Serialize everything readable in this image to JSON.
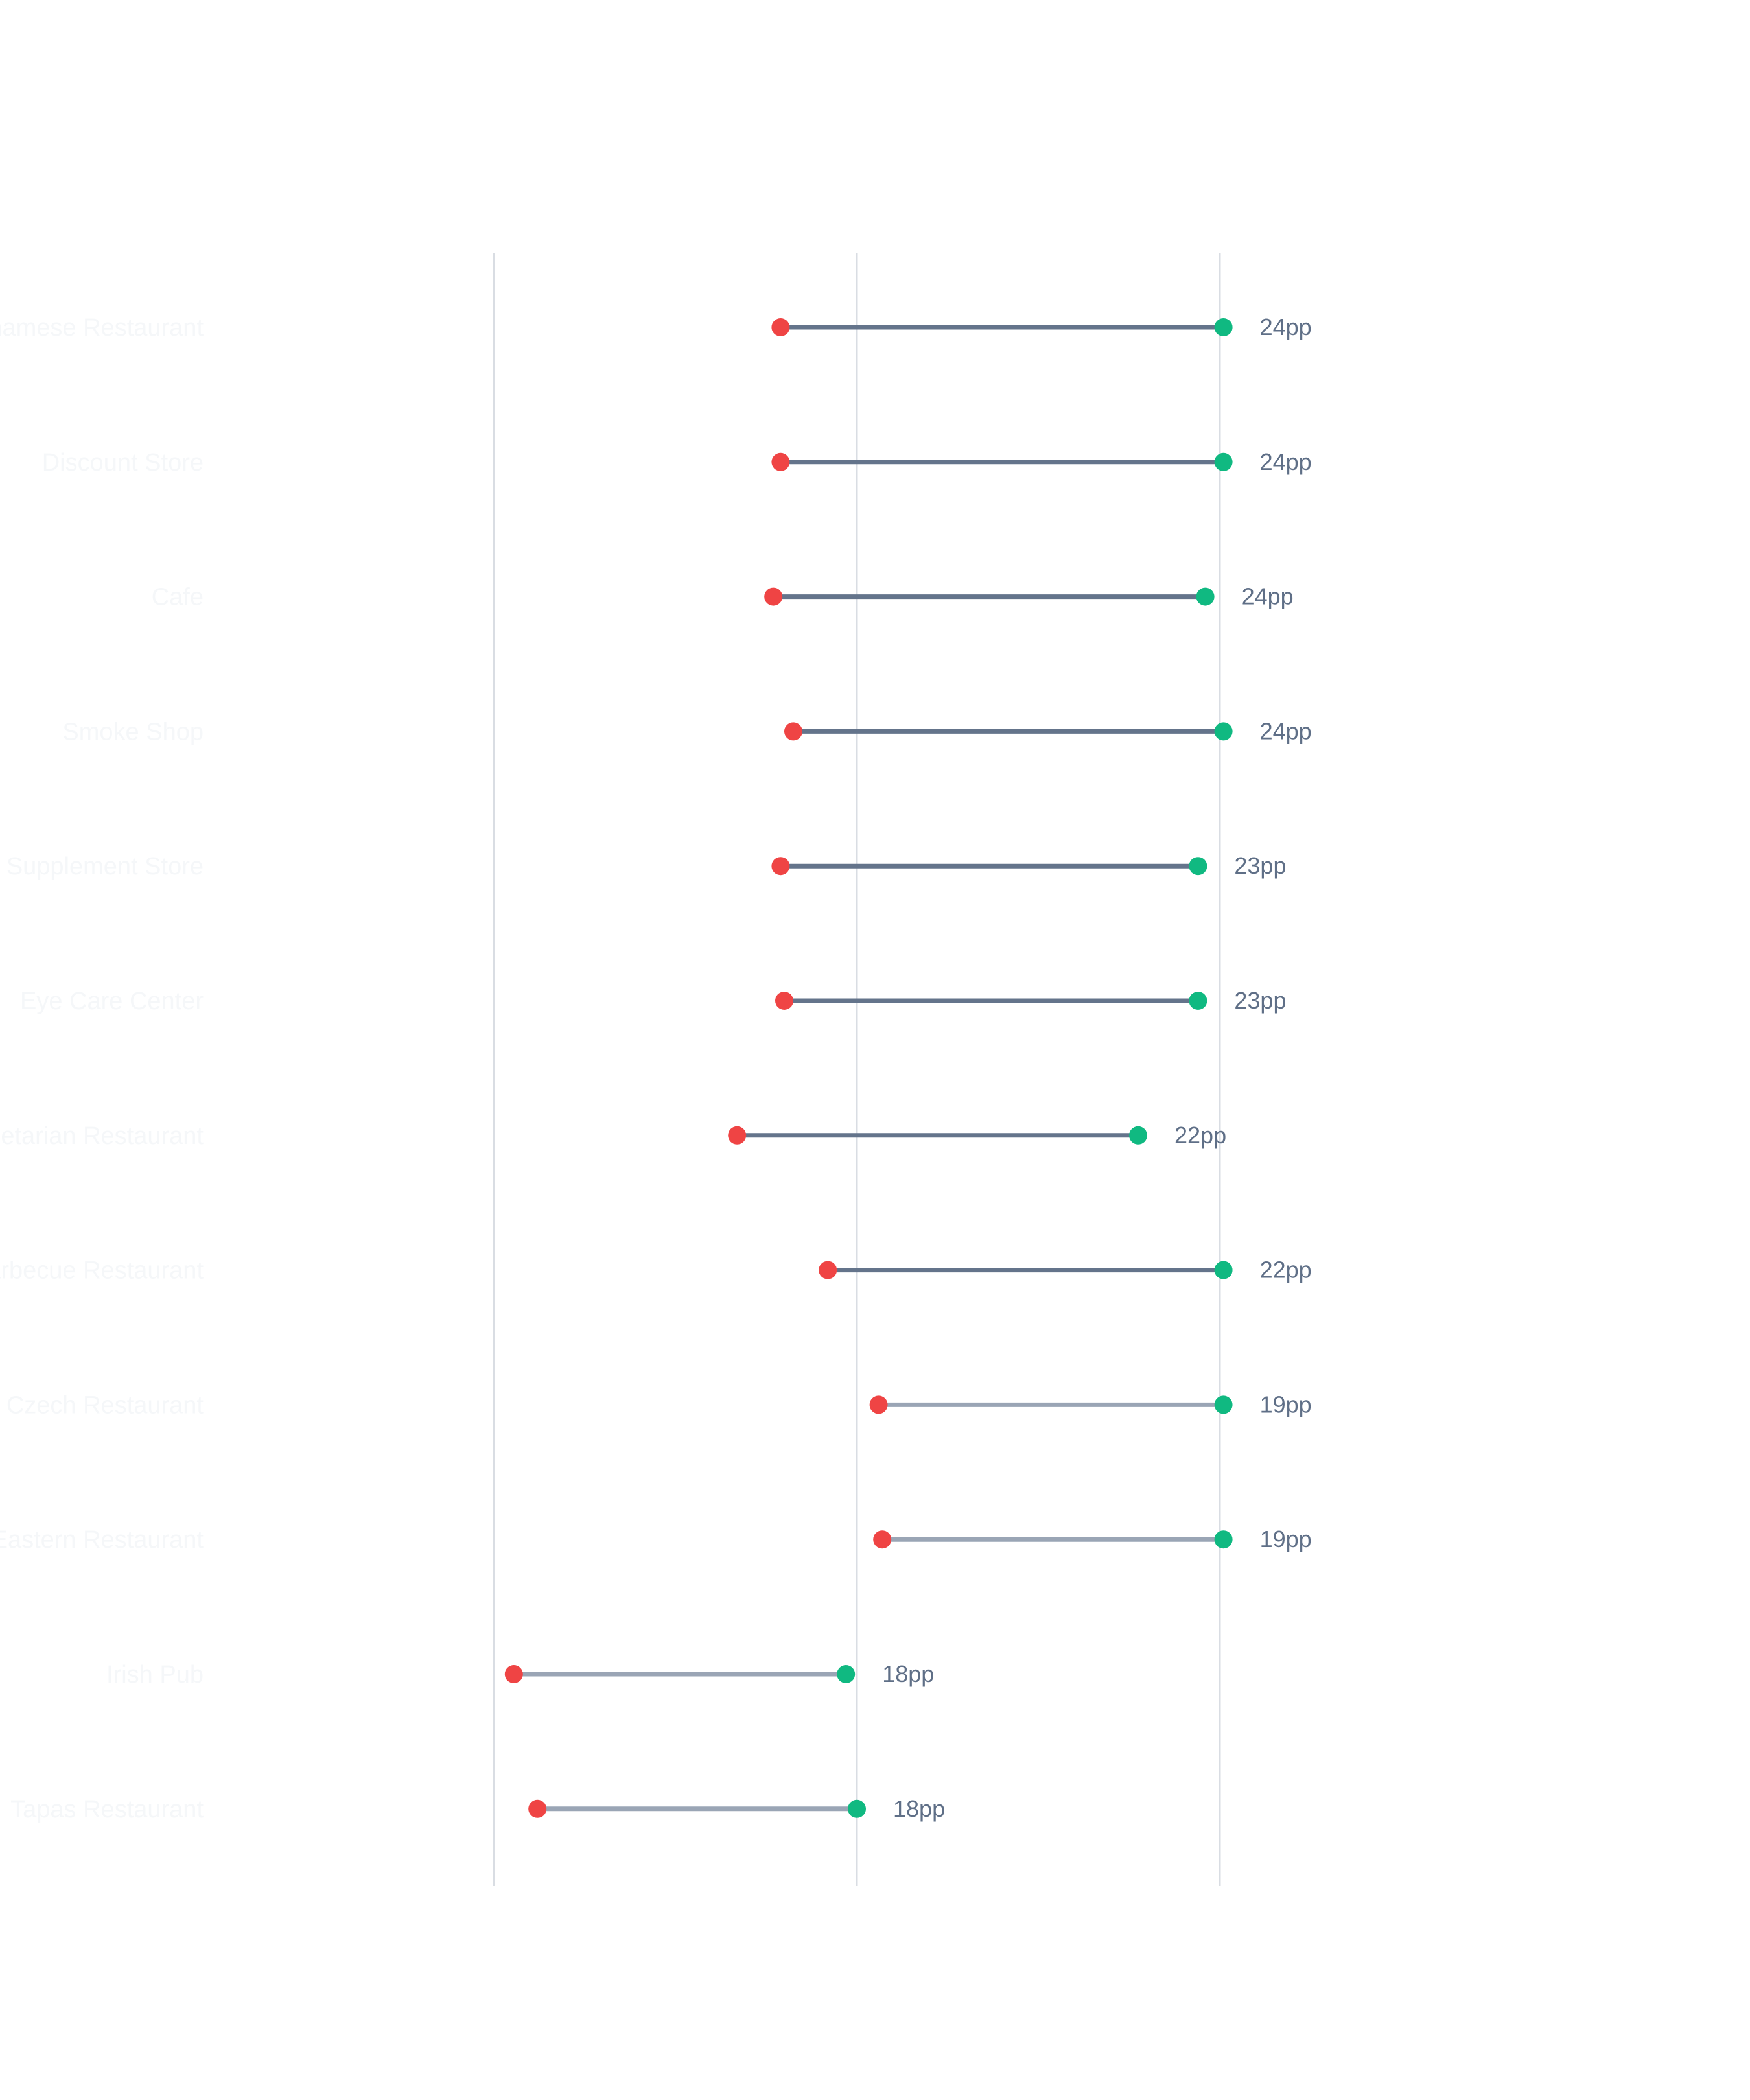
{
  "chart_data": {
    "type": "dumbbell",
    "title": "",
    "xlabel": "",
    "ylabel": "",
    "grid": "vertical",
    "colors": {
      "start_point": "#ef4444",
      "end_point": "#10b981",
      "line_major": "#64748b",
      "line_minor": "#9aa5b5",
      "gridline": "#d9dde3",
      "value_label": "#5f6f87",
      "category_label": "#f5f7f9"
    },
    "xlim": [
      0,
      0.6
    ],
    "gridlines_at": [
      0,
      0.2,
      0.4
    ],
    "rows": [
      {
        "category": "Vietnamese Restaurant",
        "start": 0.158,
        "end": 0.402,
        "label": "24pp",
        "emphasis": "major"
      },
      {
        "category": "Discount Store",
        "start": 0.158,
        "end": 0.402,
        "label": "24pp",
        "emphasis": "major"
      },
      {
        "category": "Cafe",
        "start": 0.154,
        "end": 0.392,
        "label": "24pp",
        "emphasis": "major"
      },
      {
        "category": "Smoke Shop",
        "start": 0.165,
        "end": 0.402,
        "label": "24pp",
        "emphasis": "major"
      },
      {
        "category": "Supplement Store",
        "start": 0.158,
        "end": 0.388,
        "label": "23pp",
        "emphasis": "major"
      },
      {
        "category": "Eye Care Center",
        "start": 0.16,
        "end": 0.388,
        "label": "23pp",
        "emphasis": "major"
      },
      {
        "category": "Vegetarian Restaurant",
        "start": 0.134,
        "end": 0.355,
        "label": "22pp",
        "emphasis": "major"
      },
      {
        "category": "Barbecue Restaurant",
        "start": 0.184,
        "end": 0.402,
        "label": "22pp",
        "emphasis": "major"
      },
      {
        "category": "Czech Restaurant",
        "start": 0.212,
        "end": 0.402,
        "label": "19pp",
        "emphasis": "minor"
      },
      {
        "category": "Eastern Restaurant",
        "start": 0.214,
        "end": 0.402,
        "label": "19pp",
        "emphasis": "minor"
      },
      {
        "category": "Irish Pub",
        "start": 0.011,
        "end": 0.194,
        "label": "18pp",
        "emphasis": "minor"
      },
      {
        "category": "Tapas Restaurant",
        "start": 0.024,
        "end": 0.2,
        "label": "18pp",
        "emphasis": "minor"
      }
    ]
  }
}
